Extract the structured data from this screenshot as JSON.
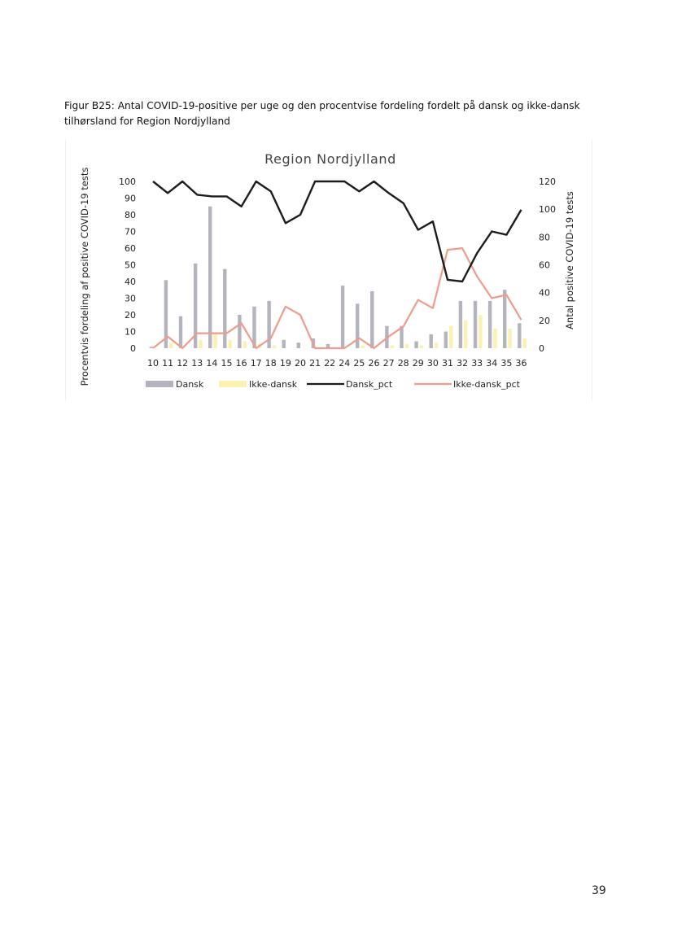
{
  "caption": "Figur B25: Antal COVID-19-positive per uge og den procentvise fordeling fordelt på dansk og ikke-dansk tilhørsland for Region Nordjylland",
  "page_number": "39",
  "colors": {
    "dansk_bar": "#b4b4be",
    "ikke_dansk_bar": "#fbf1b0",
    "dansk_pct": "#1c1c1c",
    "ikke_dansk_pct": "#ee9c8c"
  },
  "chart_data": {
    "type": "bar",
    "title": "Region Nordjylland",
    "categories": [
      "10",
      "11",
      "12",
      "13",
      "14",
      "15",
      "16",
      "17",
      "18",
      "19",
      "20",
      "21",
      "22",
      "24",
      "25",
      "26",
      "27",
      "28",
      "29",
      "30",
      "31",
      "32",
      "33",
      "34",
      "35",
      "36"
    ],
    "left_axis": {
      "label": "Procentvis fordeling af positive COVID-19 tests",
      "range": [
        0,
        100
      ],
      "ticks": [
        "0",
        "10",
        "20",
        "30",
        "40",
        "50",
        "60",
        "70",
        "80",
        "90",
        "100"
      ]
    },
    "right_axis": {
      "label": "Antal positive COVID-19 tests",
      "range": [
        0,
        120
      ],
      "ticks": [
        "0",
        "20",
        "40",
        "60",
        "80",
        "100",
        "120"
      ]
    },
    "grid": false,
    "legend_position": "bottom",
    "series": [
      {
        "name": "Dansk",
        "kind": "bar",
        "axis": "right",
        "values": [
          1,
          49,
          23,
          61,
          102,
          57,
          24,
          30,
          34,
          6,
          4,
          7,
          3,
          45,
          32,
          41,
          16,
          16,
          5,
          10,
          12,
          34,
          34,
          34,
          42,
          18
        ]
      },
      {
        "name": "Ikke-dansk",
        "kind": "bar",
        "axis": "right",
        "values": [
          0,
          4,
          0,
          6,
          10,
          6,
          5,
          3,
          2,
          0,
          0,
          0,
          0,
          0,
          2,
          0,
          2,
          3,
          2,
          4,
          16,
          20,
          24,
          14,
          14,
          7
        ]
      },
      {
        "name": "Dansk_pct",
        "kind": "line",
        "axis": "left",
        "values": [
          100,
          93,
          100,
          92,
          91,
          91,
          85,
          100,
          94,
          75,
          80,
          100,
          100,
          100,
          94,
          100,
          93,
          87,
          71,
          76,
          41,
          40,
          57,
          70,
          68,
          83
        ]
      },
      {
        "name": "Ikke-dansk_pct",
        "kind": "line",
        "axis": "left",
        "values": [
          0,
          7,
          0,
          9,
          9,
          9,
          15,
          0,
          6,
          25,
          20,
          0,
          0,
          0,
          6,
          0,
          7,
          13,
          29,
          24,
          59,
          60,
          43,
          30,
          32,
          17
        ]
      }
    ]
  }
}
